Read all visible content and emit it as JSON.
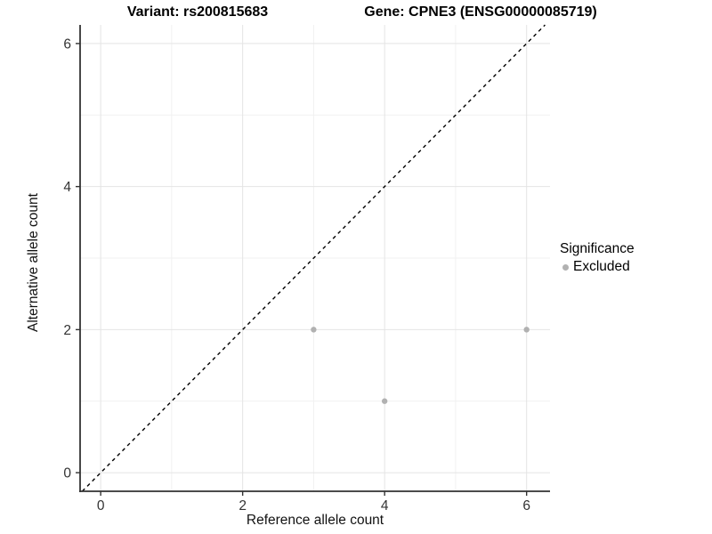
{
  "chart_data": {
    "type": "scatter",
    "title_left": "Variant: rs200815683",
    "title_right": "Gene: CPNE3 (ENSG00000085719)",
    "xlabel": "Reference allele count",
    "ylabel": "Alternative allele count",
    "x_ticks": [
      0,
      2,
      4,
      6
    ],
    "x_minor_ticks": [
      1,
      3,
      5
    ],
    "y_ticks": [
      0,
      2,
      4,
      6
    ],
    "y_minor_ticks": [
      1,
      3,
      5
    ],
    "xlim": [
      -0.29,
      6.33
    ],
    "ylim": [
      -0.26,
      6.26
    ],
    "grid": "on",
    "legend_position": "right",
    "identity_line": {
      "equation": "y = x",
      "style": "dashed",
      "color": "#000000"
    },
    "series": [
      {
        "name": "Excluded",
        "color": "#b1b1b1",
        "points": [
          [
            3,
            2
          ],
          [
            4,
            1
          ],
          [
            6,
            2
          ]
        ]
      }
    ],
    "legend": {
      "title": "Significance",
      "entries": [
        {
          "label": "Excluded",
          "color": "#b1b1b1"
        }
      ]
    },
    "colors": {
      "axis": "#333333",
      "tick_text": "#333333",
      "grid_major": "#e4e4e4",
      "grid_minor": "#f1f1f1"
    }
  }
}
